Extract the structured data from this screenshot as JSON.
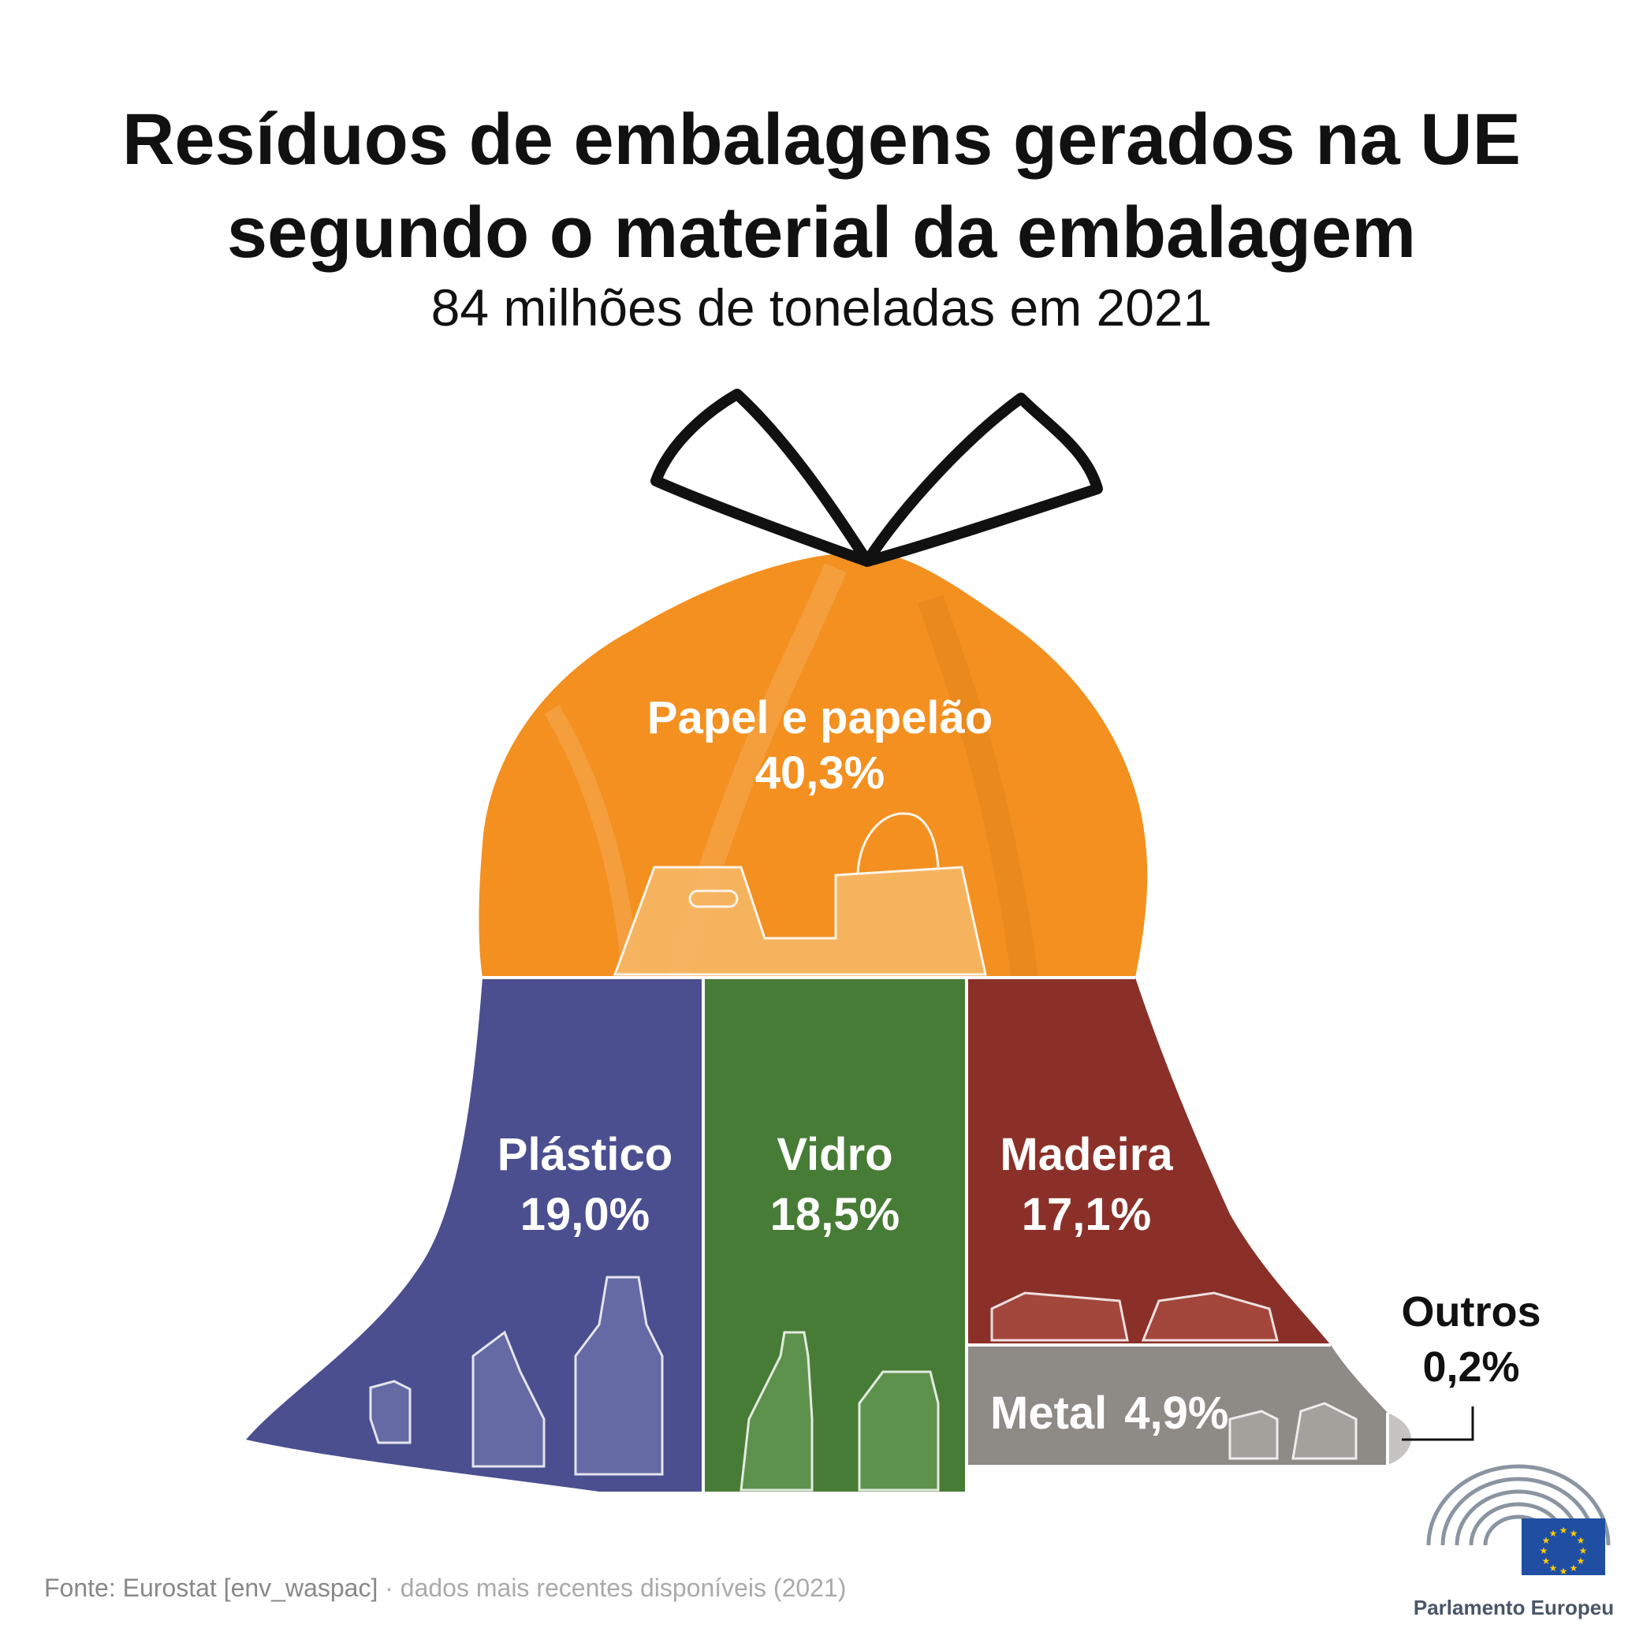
{
  "header": {
    "title_line1": "Resíduos de embalagens gerados na UE",
    "title_line2": "segundo o material da embalagem",
    "subtitle": "84 milhões de toneladas em 2021"
  },
  "chart_data": {
    "type": "bar",
    "subtype": "composition",
    "unit": "%",
    "total": "84 milhões de toneladas",
    "year": 2021,
    "categories": [
      "Papel e papelão",
      "Plástico",
      "Vidro",
      "Madeira",
      "Metal",
      "Outros"
    ],
    "values": [
      40.3,
      19.0,
      18.5,
      17.1,
      4.9,
      0.2
    ],
    "value_labels": [
      "40,3%",
      "19,0%",
      "18,5%",
      "17,1%",
      "4,9%",
      "0,2%"
    ],
    "colors": [
      "#f39020",
      "#4b4f8f",
      "#477c36",
      "#8b3028",
      "#8e8a86",
      "#c6c4c2"
    ]
  },
  "footer": {
    "source": "Fonte: Eurostat [env_waspac]",
    "separator": "·",
    "note": "dados mais recentes disponíveis (2021)",
    "logo_label": "Parlamento Europeu"
  }
}
